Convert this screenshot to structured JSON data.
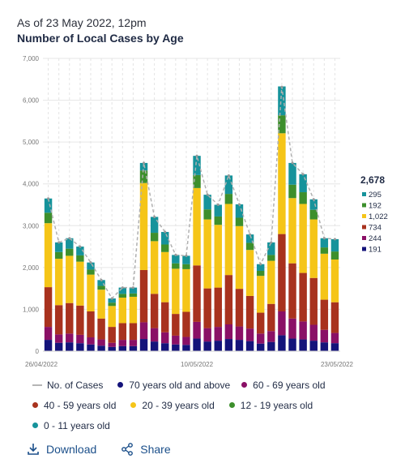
{
  "header": {
    "subtitle": "As of 23 May 2022, 12pm",
    "title": "Number of Local Cases by Age"
  },
  "actions": {
    "download_label": "Download",
    "share_label": "Share"
  },
  "tooltip": {
    "total": "2,678",
    "rows": [
      {
        "value": "295",
        "color": "#16939b"
      },
      {
        "value": "192",
        "color": "#3d8f2c"
      },
      {
        "value": "1,022",
        "color": "#f5c518"
      },
      {
        "value": "734",
        "color": "#a8321e"
      },
      {
        "value": "244",
        "color": "#8a1066"
      },
      {
        "value": "191",
        "color": "#14137a"
      }
    ]
  },
  "chart_data": {
    "type": "bar",
    "stacked": true,
    "title": "Number of Local Cases by Age",
    "ylim": [
      0,
      7000
    ],
    "yticks": [
      "0",
      "1,000",
      "2,000",
      "3,000",
      "4,000",
      "5,000",
      "6,000",
      "7,000"
    ],
    "yticks_values": [
      0,
      1000,
      2000,
      3000,
      4000,
      5000,
      6000,
      7000
    ],
    "xtick_labels": [
      {
        "index": 0,
        "label": "26/04/2022"
      },
      {
        "index": 14,
        "label": "10/05/2022"
      },
      {
        "index": 27,
        "label": "23/05/2022"
      }
    ],
    "grid": true,
    "legend_position": "bottom",
    "categories": [
      "26/04/2022",
      "27/04/2022",
      "28/04/2022",
      "29/04/2022",
      "30/04/2022",
      "01/05/2022",
      "02/05/2022",
      "03/05/2022",
      "04/05/2022",
      "05/05/2022",
      "06/05/2022",
      "07/05/2022",
      "08/05/2022",
      "09/05/2022",
      "10/05/2022",
      "11/05/2022",
      "12/05/2022",
      "13/05/2022",
      "14/05/2022",
      "15/05/2022",
      "16/05/2022",
      "17/05/2022",
      "18/05/2022",
      "19/05/2022",
      "20/05/2022",
      "21/05/2022",
      "22/05/2022",
      "23/05/2022"
    ],
    "series": [
      {
        "name": "70 years old and above",
        "color": "#14137a",
        "values": [
          270,
          200,
          210,
          190,
          160,
          130,
          100,
          120,
          120,
          290,
          230,
          190,
          160,
          150,
          300,
          230,
          250,
          290,
          270,
          240,
          180,
          220,
          380,
          300,
          280,
          250,
          210,
          191
        ]
      },
      {
        "name": "60 - 69 years old",
        "color": "#8a1066",
        "values": [
          310,
          200,
          210,
          200,
          170,
          150,
          100,
          150,
          150,
          400,
          320,
          260,
          210,
          190,
          400,
          320,
          330,
          350,
          320,
          300,
          240,
          260,
          570,
          480,
          430,
          380,
          300,
          244
        ]
      },
      {
        "name": "40 - 59 years old",
        "color": "#a8321e",
        "values": [
          950,
          700,
          730,
          700,
          620,
          500,
          380,
          400,
          400,
          1250,
          820,
          720,
          520,
          600,
          1350,
          950,
          940,
          1180,
          900,
          780,
          500,
          650,
          1850,
          1320,
          1160,
          1120,
          720,
          734
        ]
      },
      {
        "name": "20 - 39 years old",
        "color": "#f5c518",
        "values": [
          1530,
          1110,
          1130,
          1050,
          880,
          690,
          500,
          610,
          630,
          2080,
          1260,
          1200,
          1080,
          1020,
          1850,
          1650,
          1500,
          1700,
          1500,
          1100,
          880,
          1030,
          2410,
          1560,
          1650,
          1400,
          1100,
          1022
        ]
      },
      {
        "name": "12 - 19 years old",
        "color": "#3d8f2c",
        "values": [
          250,
          160,
          170,
          150,
          120,
          90,
          80,
          90,
          80,
          300,
          200,
          180,
          130,
          120,
          310,
          240,
          200,
          240,
          200,
          170,
          120,
          140,
          430,
          320,
          280,
          230,
          150,
          192
        ]
      },
      {
        "name": "0 - 11 years old",
        "color": "#16939b",
        "values": [
          340,
          230,
          250,
          210,
          170,
          140,
          100,
          150,
          140,
          180,
          380,
          300,
          200,
          200,
          460,
          350,
          280,
          440,
          320,
          200,
          160,
          300,
          690,
          520,
          430,
          250,
          220,
          295
        ]
      }
    ],
    "line_series": {
      "name": "No. of Cases",
      "color": "#b5b5b5",
      "values": [
        3650,
        2600,
        2700,
        2500,
        2120,
        1700,
        1260,
        1520,
        1520,
        4500,
        3210,
        2850,
        2300,
        2280,
        4670,
        3740,
        3500,
        4200,
        3510,
        2790,
        2080,
        2600,
        6320,
        4500,
        4230,
        3630,
        2700,
        2678
      ]
    }
  }
}
